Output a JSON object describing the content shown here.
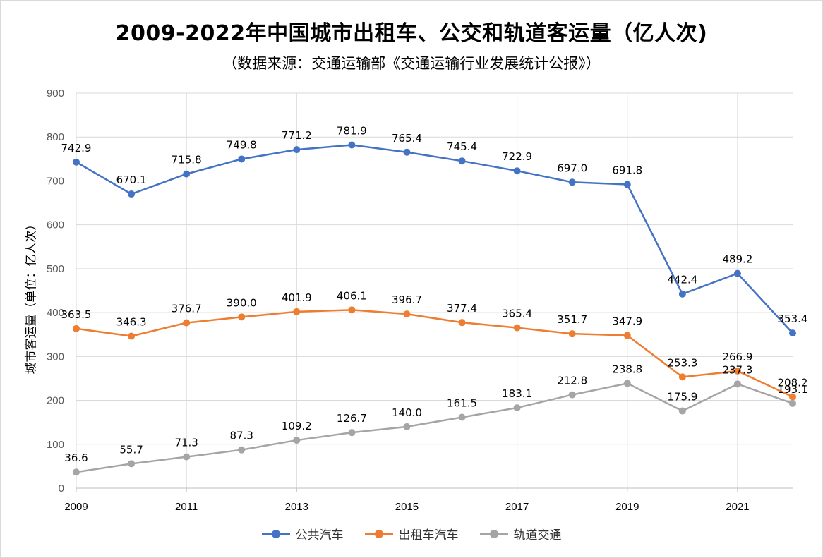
{
  "chart_data": {
    "type": "line",
    "title": "2009-2022年中国城市出租车、公交和轨道客运量（亿人次)",
    "subtitle": "（数据来源：交通运输部《交通运输行业发展统计公报》）",
    "xlabel": "",
    "ylabel": "城市客运量（单位：亿人次）",
    "ylim": [
      0,
      900
    ],
    "yticks": [
      "0",
      "100",
      "200",
      "300",
      "400",
      "500",
      "600",
      "700",
      "800",
      "900"
    ],
    "x": [
      2009,
      2010,
      2011,
      2012,
      2013,
      2014,
      2015,
      2016,
      2017,
      2018,
      2019,
      2020,
      2021,
      2022
    ],
    "xtick_labels": [
      "2009",
      "2011",
      "2013",
      "2015",
      "2017",
      "2019",
      "2021"
    ],
    "grid": true,
    "legend_position": "bottom",
    "series": [
      {
        "name": "公共汽车",
        "color": "#4472c4",
        "values": [
          742.9,
          670.1,
          715.8,
          749.8,
          771.2,
          781.9,
          765.4,
          745.4,
          722.9,
          697.0,
          691.8,
          442.4,
          489.2,
          353.4
        ],
        "labels": [
          "742.9",
          "670.1",
          "715.8",
          "749.8",
          "771.2",
          "781.9",
          "765.4",
          "745.4",
          "722.9",
          "697.0",
          "691.8",
          "442.4",
          "489.2",
          "353.4"
        ]
      },
      {
        "name": "出租车汽车",
        "color": "#ed7d31",
        "values": [
          363.5,
          346.3,
          376.7,
          390.0,
          401.9,
          406.1,
          396.7,
          377.4,
          365.4,
          351.7,
          347.9,
          253.3,
          266.9,
          208.2
        ],
        "labels": [
          "363.5",
          "346.3",
          "376.7",
          "390.0",
          "401.9",
          "406.1",
          "396.7",
          "377.4",
          "365.4",
          "351.7",
          "347.9",
          "253.3",
          "266.9",
          "208.2"
        ]
      },
      {
        "name": "轨道交通",
        "color": "#a5a5a5",
        "values": [
          36.6,
          55.7,
          71.3,
          87.3,
          109.2,
          126.7,
          140.0,
          161.5,
          183.1,
          212.8,
          238.8,
          175.9,
          237.3,
          193.1
        ],
        "labels": [
          "36.6",
          "55.7",
          "71.3",
          "87.3",
          "109.2",
          "126.7",
          "140.0",
          "161.5",
          "183.1",
          "212.8",
          "238.8",
          "175.9",
          "237.3",
          "193.1"
        ]
      }
    ]
  }
}
